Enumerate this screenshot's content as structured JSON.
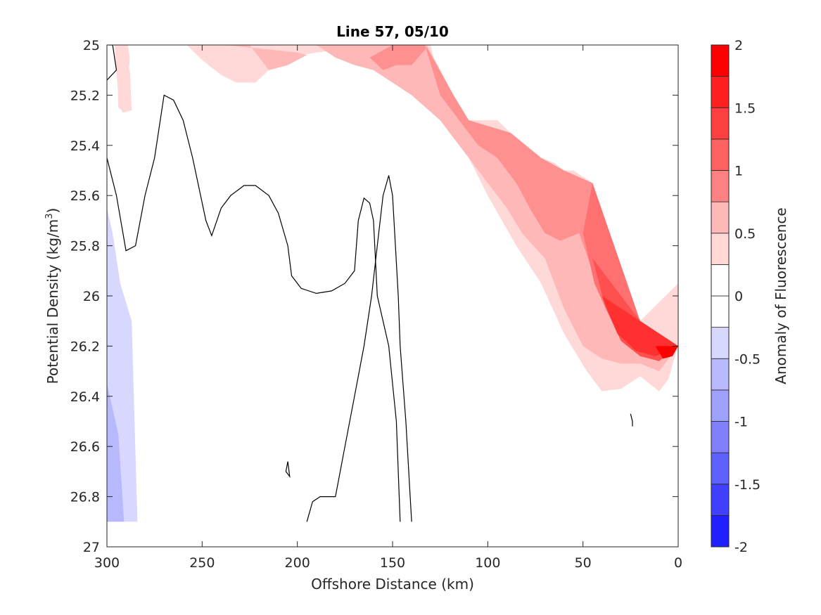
{
  "chart_data": {
    "type": "filled-contour",
    "title": "Line 57, 05/10",
    "xlabel": "Offshore Distance (km)",
    "ylabel_main": "Potential Density (kg/m",
    "ylabel_sup": "3",
    "ylabel_tail": ")",
    "xlim": [
      300,
      0
    ],
    "ylim": [
      27,
      25
    ],
    "x_reversed": true,
    "y_reversed": true,
    "x_ticks": [
      300,
      250,
      200,
      150,
      100,
      50,
      0
    ],
    "x_tick_labels": [
      "300",
      "250",
      "200",
      "150",
      "100",
      "50",
      "0"
    ],
    "y_ticks": [
      25,
      25.2,
      25.4,
      25.6,
      25.8,
      26,
      26.2,
      26.4,
      26.6,
      26.8,
      27
    ],
    "y_tick_labels": [
      "25",
      "25.2",
      "25.4",
      "25.6",
      "25.8",
      "26",
      "26.2",
      "26.4",
      "26.6",
      "26.8",
      "27"
    ],
    "colorbar": {
      "label": "Anomaly of Fluorescence",
      "range": [
        -2,
        2
      ],
      "levels": [
        -2,
        -1.75,
        -1.5,
        -1.25,
        -1,
        -0.75,
        -0.5,
        -0.25,
        0,
        0.25,
        0.5,
        0.75,
        1,
        1.25,
        1.5,
        1.75,
        2
      ],
      "tick_values": [
        2,
        1.5,
        1,
        0.5,
        0,
        -0.5,
        -1,
        -1.5,
        -2
      ],
      "tick_labels": [
        "2",
        "1.5",
        "1",
        "0.5",
        "0",
        "-0.5",
        "-1",
        "-1.5",
        "-2"
      ],
      "colors": [
        "#0000ff",
        "#2020ff",
        "#4040ff",
        "#6060ff",
        "#8080ff",
        "#a0a0ff",
        "#b8b8ff",
        "#d8d8ff",
        "#ffffff",
        "#ffffff",
        "#ffd8d8",
        "#ffb8b8",
        "#ff8080",
        "#ff6060",
        "#ff4040",
        "#ff2020",
        "#ff0000"
      ]
    },
    "fill_regions": [
      {
        "level": "0.25-0.5",
        "color": "#ffd8d8",
        "points": [
          [
            289,
            25
          ],
          [
            258,
            25
          ],
          [
            250,
            25.06
          ],
          [
            240,
            25.12
          ],
          [
            232,
            25.15
          ],
          [
            222,
            25.15
          ],
          [
            215,
            25.1
          ],
          [
            205,
            25.05
          ],
          [
            190,
            25.03
          ],
          [
            178,
            25.02
          ],
          [
            170,
            25
          ],
          [
            130,
            25
          ],
          [
            124,
            25.2
          ],
          [
            118,
            25.3
          ],
          [
            110,
            25.45
          ],
          [
            100,
            25.6
          ],
          [
            85,
            25.8
          ],
          [
            72,
            25.95
          ],
          [
            60,
            26.15
          ],
          [
            48,
            26.3
          ],
          [
            40,
            26.38
          ],
          [
            30,
            26.37
          ],
          [
            20,
            26.32
          ],
          [
            10,
            26.38
          ],
          [
            5,
            26.33
          ],
          [
            1,
            26.22
          ],
          [
            0,
            26.2
          ],
          [
            0,
            25.95
          ],
          [
            20,
            26.1
          ],
          [
            45,
            25.55
          ],
          [
            55,
            25.5
          ],
          [
            60,
            25.5
          ],
          [
            65,
            25.47
          ],
          [
            72,
            25.45
          ],
          [
            80,
            25.4
          ],
          [
            88,
            25.35
          ],
          [
            95,
            25.3
          ],
          [
            110,
            25.3
          ],
          [
            118,
            25.2
          ],
          [
            132,
            25
          ],
          [
            295,
            25
          ],
          [
            294,
            25.25
          ],
          [
            290,
            25.27
          ],
          [
            288,
            25.05
          ]
        ]
      },
      {
        "level": "0.25-0.5 side",
        "color": "#ffd8d8",
        "points": [
          [
            296,
            25
          ],
          [
            293,
            25
          ],
          [
            292,
            25.1
          ],
          [
            288,
            25.1
          ],
          [
            287,
            25.26
          ],
          [
            292,
            25.27
          ],
          [
            294,
            25.2
          ]
        ]
      },
      {
        "level": "0.5-0.75",
        "color": "#ffb8b8",
        "points": [
          [
            238,
            25
          ],
          [
            190,
            25
          ],
          [
            180,
            25.05
          ],
          [
            170,
            25.08
          ],
          [
            160,
            25.1
          ],
          [
            150,
            25.15
          ],
          [
            140,
            25.2
          ],
          [
            125,
            25.3
          ],
          [
            120,
            25.35
          ],
          [
            110,
            25.45
          ],
          [
            100,
            25.55
          ],
          [
            90,
            25.65
          ],
          [
            82,
            25.75
          ],
          [
            70,
            25.85
          ],
          [
            60,
            26.05
          ],
          [
            50,
            26.2
          ],
          [
            40,
            26.25
          ],
          [
            30,
            26.27
          ],
          [
            20,
            26.27
          ],
          [
            10,
            26.3
          ],
          [
            5,
            26.25
          ],
          [
            0,
            26.2
          ],
          [
            20,
            26.1
          ],
          [
            45,
            25.55
          ],
          [
            60,
            25.5
          ],
          [
            72,
            25.45
          ],
          [
            88,
            25.35
          ],
          [
            110,
            25.3
          ],
          [
            118,
            25.2
          ],
          [
            132,
            25
          ],
          [
            225,
            25
          ],
          [
            215,
            25.1
          ],
          [
            205,
            25.08
          ],
          [
            195,
            25.04
          ],
          [
            200,
            25.03
          ]
        ]
      },
      {
        "level": "0.75-1",
        "color": "#ff9090",
        "points": [
          [
            150,
            25
          ],
          [
            133,
            25
          ],
          [
            125,
            25.2
          ],
          [
            120,
            25.25
          ],
          [
            115,
            25.3
          ],
          [
            105,
            25.4
          ],
          [
            95,
            25.45
          ],
          [
            85,
            25.55
          ],
          [
            78,
            25.65
          ],
          [
            70,
            25.75
          ],
          [
            62,
            25.78
          ],
          [
            52,
            25.75
          ],
          [
            45,
            25.9
          ],
          [
            37,
            26.0
          ],
          [
            30,
            26.1
          ],
          [
            20,
            26.15
          ],
          [
            10,
            26.2
          ],
          [
            0,
            26.2
          ],
          [
            20,
            26.1
          ],
          [
            45,
            25.55
          ],
          [
            60,
            25.5
          ],
          [
            72,
            25.45
          ],
          [
            88,
            25.35
          ],
          [
            110,
            25.3
          ],
          [
            118,
            25.2
          ],
          [
            132,
            25.01
          ],
          [
            140,
            25.08
          ],
          [
            148,
            25.08
          ],
          [
            155,
            25.1
          ],
          [
            162,
            25.05
          ]
        ]
      },
      {
        "level": "1-1.25",
        "color": "#ff7070",
        "points": [
          [
            50,
            25.75
          ],
          [
            44,
            25.95
          ],
          [
            38,
            26.05
          ],
          [
            30,
            26.15
          ],
          [
            20,
            26.2
          ],
          [
            10,
            26.22
          ],
          [
            0,
            26.2
          ],
          [
            20,
            26.1
          ],
          [
            45,
            25.55
          ]
        ]
      },
      {
        "level": "1.25-1.5",
        "color": "#ff5050",
        "points": [
          [
            45,
            25.85
          ],
          [
            38,
            26.05
          ],
          [
            30,
            26.18
          ],
          [
            20,
            26.24
          ],
          [
            10,
            26.26
          ],
          [
            0,
            26.2
          ],
          [
            20,
            26.1
          ]
        ]
      },
      {
        "level": "1.5-1.75",
        "color": "#ff3030",
        "points": [
          [
            40,
            26.0
          ],
          [
            32,
            26.15
          ],
          [
            22,
            26.22
          ],
          [
            12,
            26.24
          ],
          [
            0,
            26.2
          ],
          [
            20,
            26.1
          ]
        ]
      },
      {
        "level": "1.75-2",
        "color": "#ff0000",
        "points": [
          [
            12,
            26.2
          ],
          [
            0,
            26.2
          ],
          [
            3,
            26.24
          ],
          [
            8,
            26.25
          ]
        ]
      },
      {
        "level": "-0.25-0",
        "color": "#d8d8ff",
        "points": [
          [
            300,
            25.65
          ],
          [
            300,
            26.9
          ],
          [
            284,
            26.9
          ],
          [
            287,
            26.1
          ],
          [
            293,
            25.95
          ],
          [
            297,
            25.75
          ]
        ]
      },
      {
        "level": "-0.5--0.25",
        "color": "#b8b8ff",
        "points": [
          [
            300,
            26.35
          ],
          [
            300,
            26.9
          ],
          [
            291,
            26.9
          ],
          [
            294,
            26.55
          ]
        ]
      }
    ],
    "zero_contours": [
      [
        [
          300,
          25.14
        ],
        [
          295,
          25.1
        ],
        [
          297,
          25
        ],
        [
          299,
          25.0
        ]
      ],
      [
        [
          300,
          25.45
        ],
        [
          295,
          25.6
        ],
        [
          290,
          25.82
        ],
        [
          285,
          25.8
        ],
        [
          280,
          25.6
        ],
        [
          275,
          25.45
        ],
        [
          270,
          25.2
        ],
        [
          265,
          25.22
        ],
        [
          260,
          25.3
        ],
        [
          255,
          25.45
        ],
        [
          248,
          25.7
        ],
        [
          245,
          25.76
        ],
        [
          240,
          25.65
        ],
        [
          235,
          25.6
        ],
        [
          228,
          25.56
        ],
        [
          222,
          25.56
        ],
        [
          215,
          25.6
        ],
        [
          210,
          25.67
        ],
        [
          205,
          25.8
        ],
        [
          203,
          25.92
        ],
        [
          198,
          25.97
        ],
        [
          190,
          25.99
        ],
        [
          182,
          25.98
        ],
        [
          175,
          25.95
        ],
        [
          170,
          25.9
        ],
        [
          168,
          25.7
        ],
        [
          165,
          25.61
        ],
        [
          162,
          25.63
        ],
        [
          160,
          25.7
        ],
        [
          158,
          26.0
        ],
        [
          152,
          26.2
        ],
        [
          148,
          26.5
        ],
        [
          146,
          26.9
        ]
      ],
      [
        [
          140,
          26.9
        ],
        [
          143,
          26.5
        ],
        [
          146,
          26.2
        ],
        [
          147,
          26.0
        ],
        [
          150,
          25.6
        ],
        [
          152,
          25.52
        ],
        [
          155,
          25.6
        ],
        [
          158,
          25.8
        ],
        [
          161,
          26.0
        ],
        [
          165,
          26.2
        ],
        [
          170,
          26.4
        ],
        [
          175,
          26.6
        ],
        [
          180,
          26.8
        ],
        [
          188,
          26.8
        ],
        [
          192,
          26.82
        ],
        [
          195,
          26.9
        ]
      ],
      [
        [
          205,
          26.66
        ],
        [
          206,
          26.7
        ],
        [
          204,
          26.72
        ],
        [
          205,
          26.66
        ]
      ],
      [
        [
          25,
          26.47
        ],
        [
          24,
          26.5
        ],
        [
          24,
          26.52
        ]
      ]
    ]
  }
}
